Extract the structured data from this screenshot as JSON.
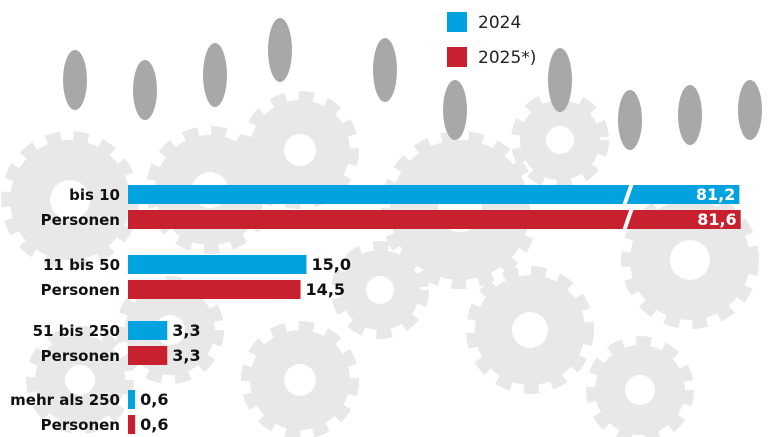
{
  "chart_data": {
    "type": "bar",
    "orientation": "horizontal",
    "categories": [
      [
        "bis 10",
        "Personen"
      ],
      [
        "11 bis 50",
        "Personen"
      ],
      [
        "51 bis 250",
        "Personen"
      ],
      [
        "mehr als 250",
        "Personen"
      ]
    ],
    "series": [
      {
        "name": "2024",
        "color": "#00a3e0",
        "values": [
          81.2,
          15.0,
          3.3,
          0.6
        ],
        "value_labels": [
          "81,2",
          "15,0",
          "3,3",
          "0,6"
        ]
      },
      {
        "name": "2025*)",
        "color": "#c8202f",
        "values": [
          81.6,
          14.5,
          3.3,
          0.6
        ],
        "value_labels": [
          "81,6",
          "14,5",
          "3,3",
          "0,6"
        ]
      }
    ],
    "axis_break": true
  }
}
